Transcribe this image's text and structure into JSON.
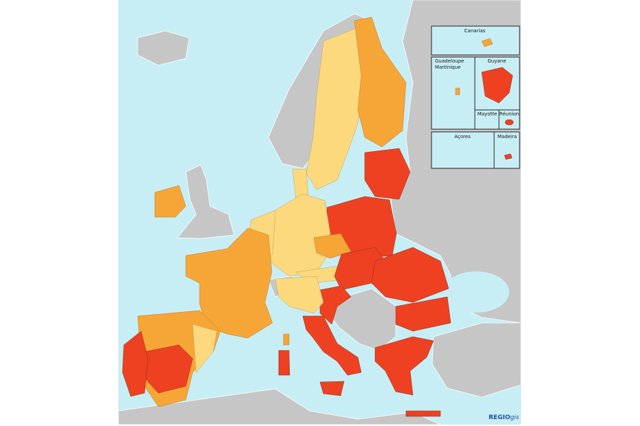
{
  "insets": [
    {
      "lines": [
        "Canarias"
      ]
    },
    {
      "lines": [
        "Guadeloupe",
        "Martinique"
      ]
    },
    {
      "lines": [
        "Guyane"
      ]
    },
    {
      "lines": [
        "Mayotte"
      ]
    },
    {
      "lines": [
        "Réunion"
      ]
    },
    {
      "lines": [
        "Açores"
      ]
    },
    {
      "lines": [
        "Madeira"
      ]
    }
  ],
  "logo": {
    "bold": "REGIO",
    "italic": "gis"
  }
}
